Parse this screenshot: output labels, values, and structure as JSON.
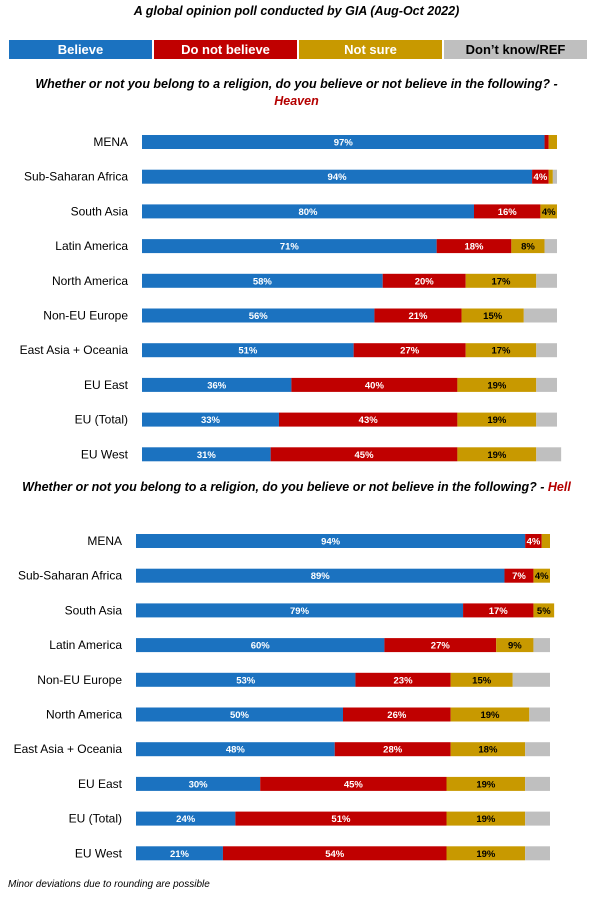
{
  "title": "A global opinion poll conducted by GIA (Aug-Oct 2022)",
  "legend": [
    {
      "label": "Believe",
      "color": "#1b72c0"
    },
    {
      "label": "Do not believe",
      "color": "#c00000"
    },
    {
      "label": "Not sure",
      "color": "#c89900"
    },
    {
      "label": "Don’t know/REF",
      "color": "#bfbfbf"
    }
  ],
  "colors": {
    "title_highlight": "#b40000",
    "other_segment": "#bfbfbf"
  },
  "footnote": "Minor deviations due to rounding are possible",
  "chart_data": [
    {
      "type": "bar",
      "orientation": "horizontal",
      "stacked": true,
      "title_prefix": "Whether or not you belong to a religion, do you believe or not believe in the following? -",
      "title_highlight": "Heaven",
      "categories": [
        "MENA",
        "Sub-Saharan Africa",
        "South Asia",
        "Latin America",
        "North America",
        "Non-EU Europe",
        "East Asia + Oceania",
        "EU East",
        "EU (Total)",
        "EU West"
      ],
      "series": [
        {
          "name": "Believe",
          "values": [
            97,
            94,
            80,
            71,
            58,
            56,
            51,
            36,
            33,
            31
          ]
        },
        {
          "name": "Do not believe",
          "values": [
            1,
            4,
            16,
            18,
            20,
            21,
            27,
            40,
            43,
            45
          ]
        },
        {
          "name": "Not sure",
          "values": [
            2,
            1,
            4,
            8,
            17,
            15,
            17,
            19,
            19,
            19
          ]
        },
        {
          "name": "Don’t know/REF",
          "values": [
            0,
            1,
            0,
            3,
            5,
            8,
            5,
            5,
            5,
            6
          ]
        }
      ],
      "labels": [
        [
          "97%",
          "",
          "",
          ""
        ],
        [
          "94%",
          "4%",
          "",
          ""
        ],
        [
          "80%",
          "16%",
          "4%",
          ""
        ],
        [
          "71%",
          "18%",
          "8%",
          ""
        ],
        [
          "58%",
          "20%",
          "17%",
          ""
        ],
        [
          "56%",
          "21%",
          "15%",
          ""
        ],
        [
          "51%",
          "27%",
          "17%",
          ""
        ],
        [
          "36%",
          "40%",
          "19%",
          ""
        ],
        [
          "33%",
          "43%",
          "19%",
          ""
        ],
        [
          "31%",
          "45%",
          "19%",
          ""
        ]
      ]
    },
    {
      "type": "bar",
      "orientation": "horizontal",
      "stacked": true,
      "title_prefix": "Whether or not you belong to a religion, do you believe or not believe in the following? -",
      "title_highlight": "Hell",
      "categories": [
        "MENA",
        "Sub-Saharan Africa",
        "South Asia",
        "Latin America",
        "Non-EU Europe",
        "North America",
        "East Asia + Oceania",
        "EU East",
        "EU (Total)",
        "EU West"
      ],
      "series": [
        {
          "name": "Believe",
          "values": [
            94,
            89,
            79,
            60,
            53,
            50,
            48,
            30,
            24,
            21
          ]
        },
        {
          "name": "Do not believe",
          "values": [
            4,
            7,
            17,
            27,
            23,
            26,
            28,
            45,
            51,
            54
          ]
        },
        {
          "name": "Not sure",
          "values": [
            2,
            4,
            5,
            9,
            15,
            19,
            18,
            19,
            19,
            19
          ]
        },
        {
          "name": "Don’t know/REF",
          "values": [
            0,
            0,
            0,
            4,
            9,
            5,
            6,
            6,
            6,
            6
          ]
        }
      ],
      "labels": [
        [
          "94%",
          "4%",
          "",
          ""
        ],
        [
          "89%",
          "7%",
          "4%",
          ""
        ],
        [
          "79%",
          "17%",
          "5%",
          ""
        ],
        [
          "60%",
          "27%",
          "9%",
          ""
        ],
        [
          "53%",
          "23%",
          "15%",
          ""
        ],
        [
          "50%",
          "26%",
          "19%",
          ""
        ],
        [
          "48%",
          "28%",
          "18%",
          ""
        ],
        [
          "30%",
          "45%",
          "19%",
          ""
        ],
        [
          "24%",
          "51%",
          "19%",
          ""
        ],
        [
          "21%",
          "54%",
          "19%",
          ""
        ]
      ]
    }
  ]
}
